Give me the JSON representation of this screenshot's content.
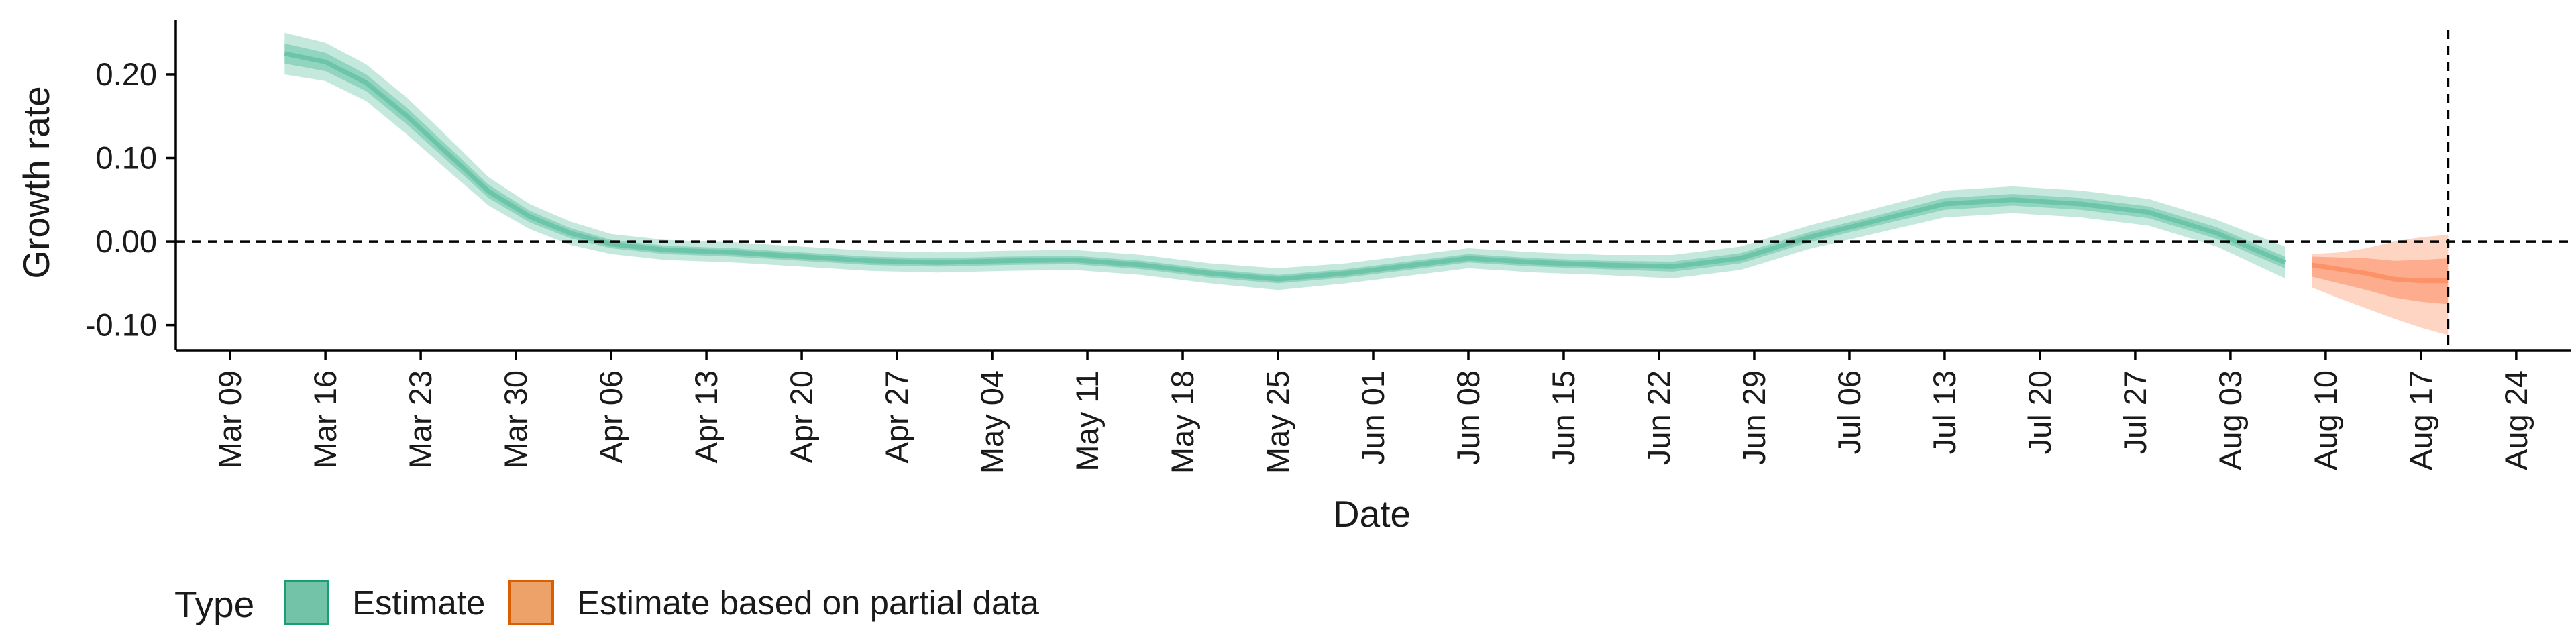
{
  "chart_data": {
    "type": "area",
    "title": "",
    "xlabel": "Date",
    "ylabel": "Growth rate",
    "xlim": [
      "2020-03-05",
      "2020-08-28"
    ],
    "ylim": [
      -0.13,
      0.265
    ],
    "x_ticks": [
      "2020-03-09",
      "2020-03-16",
      "2020-03-23",
      "2020-03-30",
      "2020-04-06",
      "2020-04-13",
      "2020-04-20",
      "2020-04-27",
      "2020-05-04",
      "2020-05-11",
      "2020-05-18",
      "2020-05-25",
      "2020-06-01",
      "2020-06-08",
      "2020-06-15",
      "2020-06-22",
      "2020-06-29",
      "2020-07-06",
      "2020-07-13",
      "2020-07-20",
      "2020-07-27",
      "2020-08-03",
      "2020-08-10",
      "2020-08-17",
      "2020-08-24"
    ],
    "x_tick_labels": [
      "Mar 09",
      "Mar 16",
      "Mar 23",
      "Mar 30",
      "Apr 06",
      "Apr 13",
      "Apr 20",
      "Apr 27",
      "May 04",
      "May 11",
      "May 18",
      "May 25",
      "Jun 01",
      "Jun 08",
      "Jun 15",
      "Jun 22",
      "Jun 29",
      "Jul 06",
      "Jul 13",
      "Jul 20",
      "Jul 27",
      "Aug 03",
      "Aug 10",
      "Aug 17",
      "Aug 24"
    ],
    "y_ticks": [
      0.2,
      0.1,
      0.0,
      -0.1
    ],
    "y_tick_labels": [
      "0.20",
      "0.10",
      "0.00",
      "-0.10"
    ],
    "hline": 0.0,
    "vline": "2020-08-19",
    "grid": false,
    "legend": {
      "title": "Type",
      "position": "bottom-left",
      "entries": [
        {
          "label": "Estimate",
          "fill": "#72c3a7",
          "border": "#1b9e77"
        },
        {
          "label": "Estimate based on partial data",
          "fill": "#eda26a",
          "border": "#d95f02"
        }
      ]
    },
    "series": [
      {
        "name": "Estimate",
        "color": "#66c2a5",
        "x": [
          "2020-03-13",
          "2020-03-16",
          "2020-03-19",
          "2020-03-22",
          "2020-03-25",
          "2020-03-28",
          "2020-03-31",
          "2020-04-03",
          "2020-04-06",
          "2020-04-10",
          "2020-04-15",
          "2020-04-20",
          "2020-04-25",
          "2020-04-30",
          "2020-05-05",
          "2020-05-10",
          "2020-05-15",
          "2020-05-20",
          "2020-05-25",
          "2020-05-30",
          "2020-06-04",
          "2020-06-08",
          "2020-06-13",
          "2020-06-18",
          "2020-06-23",
          "2020-06-28",
          "2020-07-03",
          "2020-07-08",
          "2020-07-13",
          "2020-07-18",
          "2020-07-23",
          "2020-07-28",
          "2020-08-02",
          "2020-08-07"
        ],
        "median": [
          0.225,
          0.215,
          0.19,
          0.15,
          0.105,
          0.06,
          0.03,
          0.01,
          -0.003,
          -0.01,
          -0.013,
          -0.018,
          -0.023,
          -0.025,
          -0.023,
          -0.022,
          -0.028,
          -0.038,
          -0.045,
          -0.038,
          -0.028,
          -0.02,
          -0.025,
          -0.028,
          -0.03,
          -0.02,
          0.005,
          0.025,
          0.045,
          0.05,
          0.045,
          0.035,
          0.01,
          -0.025
        ],
        "inner_lower": [
          0.213,
          0.204,
          0.18,
          0.14,
          0.096,
          0.052,
          0.023,
          0.004,
          -0.008,
          -0.015,
          -0.018,
          -0.023,
          -0.028,
          -0.03,
          -0.028,
          -0.027,
          -0.033,
          -0.043,
          -0.05,
          -0.043,
          -0.033,
          -0.025,
          -0.03,
          -0.033,
          -0.036,
          -0.026,
          -0.001,
          0.019,
          0.038,
          0.043,
          0.038,
          0.028,
          0.003,
          -0.032
        ],
        "inner_upper": [
          0.237,
          0.226,
          0.2,
          0.16,
          0.114,
          0.068,
          0.037,
          0.016,
          0.002,
          -0.005,
          -0.008,
          -0.013,
          -0.018,
          -0.02,
          -0.018,
          -0.017,
          -0.023,
          -0.033,
          -0.04,
          -0.033,
          -0.023,
          -0.015,
          -0.02,
          -0.023,
          -0.024,
          -0.014,
          0.011,
          0.031,
          0.052,
          0.057,
          0.052,
          0.042,
          0.017,
          -0.018
        ],
        "outer_lower": [
          0.2,
          0.192,
          0.168,
          0.128,
          0.085,
          0.043,
          0.015,
          -0.004,
          -0.015,
          -0.022,
          -0.025,
          -0.03,
          -0.035,
          -0.037,
          -0.035,
          -0.034,
          -0.04,
          -0.05,
          -0.058,
          -0.05,
          -0.04,
          -0.032,
          -0.037,
          -0.04,
          -0.044,
          -0.034,
          -0.009,
          0.01,
          0.029,
          0.034,
          0.029,
          0.019,
          -0.006,
          -0.044
        ],
        "outer_upper": [
          0.25,
          0.238,
          0.212,
          0.172,
          0.125,
          0.077,
          0.045,
          0.024,
          0.009,
          0.002,
          -0.001,
          -0.006,
          -0.011,
          -0.013,
          -0.011,
          -0.01,
          -0.016,
          -0.026,
          -0.032,
          -0.026,
          -0.016,
          -0.008,
          -0.013,
          -0.016,
          -0.016,
          -0.006,
          0.019,
          0.04,
          0.061,
          0.066,
          0.061,
          0.051,
          0.026,
          -0.006
        ]
      },
      {
        "name": "Estimate based on partial data",
        "color": "#fc8d62",
        "x": [
          "2020-08-09",
          "2020-08-11",
          "2020-08-13",
          "2020-08-15",
          "2020-08-17",
          "2020-08-19"
        ],
        "median": [
          -0.028,
          -0.033,
          -0.038,
          -0.045,
          -0.047,
          -0.047
        ],
        "inner_lower": [
          -0.042,
          -0.05,
          -0.058,
          -0.067,
          -0.072,
          -0.075
        ],
        "inner_upper": [
          -0.018,
          -0.019,
          -0.02,
          -0.023,
          -0.022,
          -0.02
        ],
        "outer_lower": [
          -0.055,
          -0.068,
          -0.08,
          -0.092,
          -0.103,
          -0.112
        ],
        "outer_upper": [
          -0.015,
          -0.013,
          -0.008,
          0.0,
          0.005,
          0.008
        ]
      }
    ]
  }
}
